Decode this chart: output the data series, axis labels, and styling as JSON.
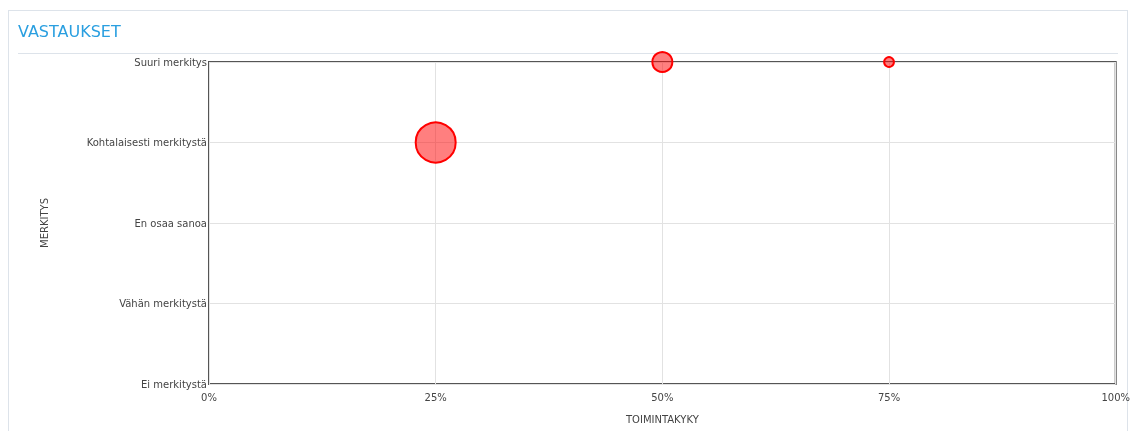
{
  "chart_data": {
    "type": "bubble",
    "orientation": "horizontal",
    "title": "VASTAUKSET",
    "xlabel": "TOIMINTAKYKY",
    "ylabel": "MERKITYS",
    "categories": [
      "Suuri merkitys",
      "Kohtalaisesti merkitystä",
      "En osaa sanoa",
      "Vähän merkitystä",
      "Ei merkitystä"
    ],
    "series": [
      {
        "color": "#ff0000",
        "values": [
          50,
          25,
          null,
          null,
          null
        ],
        "sizes": [
          0.25,
          1,
          null,
          null,
          null
        ]
      },
      {
        "color": "#ff0000",
        "values": [
          75,
          null,
          null,
          null,
          null
        ],
        "sizes": [
          0.06,
          null,
          null,
          null,
          null
        ]
      }
    ],
    "xlim": [
      0,
      100
    ],
    "xticks": [
      {
        "value": 0,
        "label": "0%"
      },
      {
        "value": 25,
        "label": "25%"
      },
      {
        "value": 50,
        "label": "50%"
      },
      {
        "value": 75,
        "label": "75%"
      },
      {
        "value": 100,
        "label": "100%"
      }
    ],
    "grid": true
  }
}
